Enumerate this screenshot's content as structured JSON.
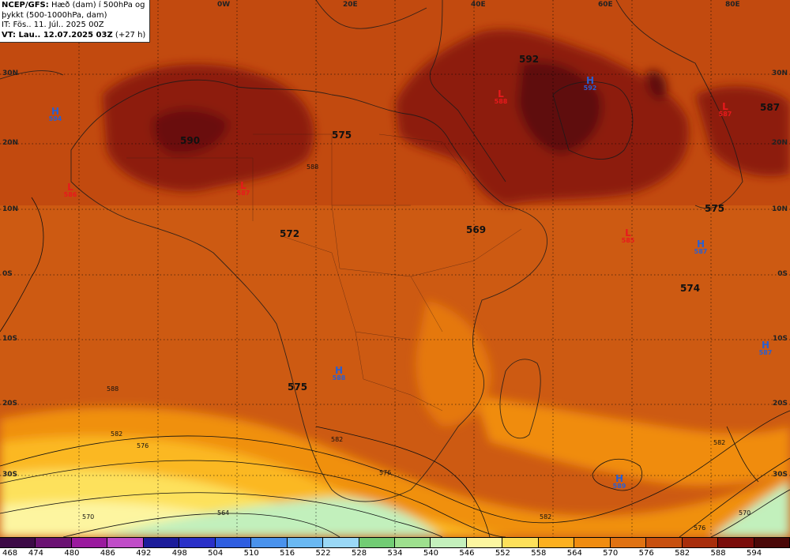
{
  "info": {
    "line1_bold": "NCEP/GFS:",
    "line1_rest": " Hæð (dam) í 500hPa og",
    "line2": "þykkt (500-1000hPa, dam)",
    "line3": "IT: Fös.. 11. Júl.. 2025 00Z",
    "line4_bold": "VT: Lau.. 12.07.2025 03Z",
    "line4_rest": " (+27 h)"
  },
  "lon_labels": [
    "0W",
    "20E",
    "40E",
    "60E",
    "80E"
  ],
  "lat_labels_left": [
    "30N",
    "20N",
    "10N",
    "0S",
    "10S",
    "20S",
    "30S"
  ],
  "lat_labels_right": [
    "30N",
    "20N",
    "10N",
    "0S",
    "10S",
    "20S",
    "30S"
  ],
  "pressure_centers": [
    {
      "type": "H",
      "value": "594"
    },
    {
      "type": "L",
      "value": "586"
    },
    {
      "type": "L",
      "value": "587"
    },
    {
      "type": "L",
      "value": "588"
    },
    {
      "type": "H",
      "value": "592"
    },
    {
      "type": "L",
      "value": "587"
    },
    {
      "type": "L",
      "value": "585"
    },
    {
      "type": "H",
      "value": "587"
    },
    {
      "type": "H",
      "value": "587"
    },
    {
      "type": "H",
      "value": "588"
    },
    {
      "type": "H",
      "value": "589"
    }
  ],
  "thickness_values": [
    "590",
    "575",
    "592",
    "587",
    "575",
    "572",
    "569",
    "574",
    "575"
  ],
  "contour_labels": [
    "582",
    "588",
    "576",
    "570",
    "564",
    "588",
    "582",
    "576",
    "582",
    "576",
    "570",
    "582"
  ],
  "legend": {
    "labels": [
      "468",
      "474",
      "480",
      "486",
      "492",
      "498",
      "504",
      "510",
      "516",
      "522",
      "528",
      "534",
      "540",
      "546",
      "552",
      "558",
      "564",
      "570",
      "576",
      "582",
      "588",
      "594"
    ],
    "colors": [
      "#3c0a46",
      "#6b1273",
      "#9a1a9e",
      "#c04cc8",
      "#1c1c9a",
      "#2a30c8",
      "#2f5ee0",
      "#4a92ec",
      "#6ab8f2",
      "#9ad8f6",
      "#72cc74",
      "#9ee08e",
      "#c4f0bc",
      "#fcf6a0",
      "#fde05a",
      "#fcb020",
      "#f08c10",
      "#e07212",
      "#c8500f",
      "#a82e0c",
      "#7a0c0a",
      "#4a0808"
    ]
  }
}
